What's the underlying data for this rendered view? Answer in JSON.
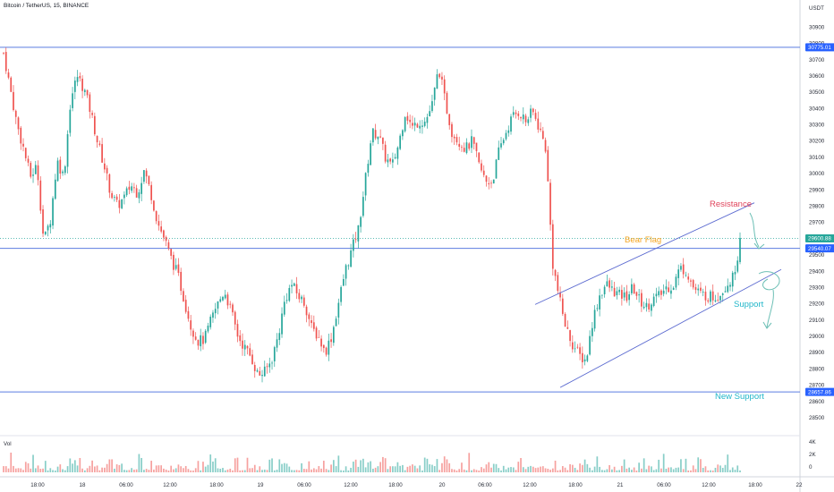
{
  "header": {
    "symbol_title": "Bitcoin / TetherUS, 15, BINANCE",
    "currency": "USDT"
  },
  "vol_label": "Vol",
  "colors": {
    "up": "#26a69a",
    "down": "#ef5350",
    "level_line": "#5b7de0",
    "level_badge": "#2962ff",
    "current_badge": "#26a69a",
    "resistance": "#e0455d",
    "bear_flag": "#f5a623",
    "support": "#21b6c9",
    "new_support": "#21b6c9",
    "arrow": "#6cbfb5"
  },
  "chart_data": {
    "type": "candlestick",
    "title": "Bitcoin / TetherUS, 15, BINANCE",
    "y_axis_side": "right",
    "ylim": [
      28400,
      31000
    ],
    "y_ticks": [
      30900,
      30800,
      30700,
      30600,
      30500,
      30400,
      30300,
      30200,
      30100,
      30000,
      29900,
      29800,
      29700,
      29600,
      29500,
      29400,
      29300,
      29200,
      29100,
      29000,
      28900,
      28800,
      28700,
      28600,
      28500
    ],
    "x_ticks": [
      "18:00",
      "18",
      "06:00",
      "12:00",
      "18:00",
      "19",
      "06:00",
      "12:00",
      "18:00",
      "20",
      "06:00",
      "12:00",
      "18:00",
      "21",
      "06:00",
      "12:00",
      "18:00",
      "22"
    ],
    "horizontal_levels": [
      {
        "value": 30775.01,
        "label": "30775.01"
      },
      {
        "value": 29540.07,
        "label": "29540.07"
      },
      {
        "value": 28657.86,
        "label": "28657.86"
      }
    ],
    "current_price": {
      "value": 29600.88,
      "label": "29600.88"
    },
    "close_series": [
      30740,
      30520,
      30300,
      30150,
      29980,
      30050,
      29580,
      29720,
      30080,
      29980,
      30450,
      30600,
      30520,
      30380,
      30200,
      30050,
      29880,
      29800,
      29850,
      29930,
      29880,
      30020,
      29880,
      29700,
      29600,
      29480,
      29380,
      29220,
      29060,
      28970,
      28980,
      29100,
      29200,
      29280,
      29150,
      29000,
      28930,
      28870,
      28760,
      28780,
      28850,
      29000,
      29220,
      29320,
      29250,
      29200,
      29050,
      29000,
      28900,
      29000,
      29200,
      29400,
      29530,
      29660,
      29950,
      30250,
      30240,
      30100,
      30040,
      30180,
      30380,
      30280,
      30320,
      30320,
      30420,
      30650,
      30430,
      30250,
      30200,
      30150,
      30200,
      30050,
      29950,
      29950,
      30140,
      30250,
      30350,
      30380,
      30320,
      30380,
      30280,
      30150,
      29450,
      29230,
      29050,
      28950,
      28880,
      28850,
      29100,
      29250,
      29320,
      29280,
      29250,
      29240,
      29300,
      29220,
      29180,
      29230,
      29250,
      29300,
      29310,
      29420,
      29400,
      29300,
      29260,
      29250,
      29240,
      29260,
      29320,
      29360,
      29580
    ],
    "volume_scale_ticks": [
      "4K",
      "2K",
      "0"
    ],
    "annotations": [
      {
        "text": "Resistance",
        "color_key": "resistance"
      },
      {
        "text": "Bear Flag",
        "color_key": "bear_flag"
      },
      {
        "text": "Support",
        "color_key": "support"
      },
      {
        "text": "New Support",
        "color_key": "new_support"
      }
    ],
    "channel": {
      "upper": [
        [
          28940,
          29195
        ],
        [
          29790,
          29820
        ]
      ],
      "lower": [
        [
          28940,
          28685
        ],
        [
          29790,
          29410
        ]
      ]
    }
  }
}
